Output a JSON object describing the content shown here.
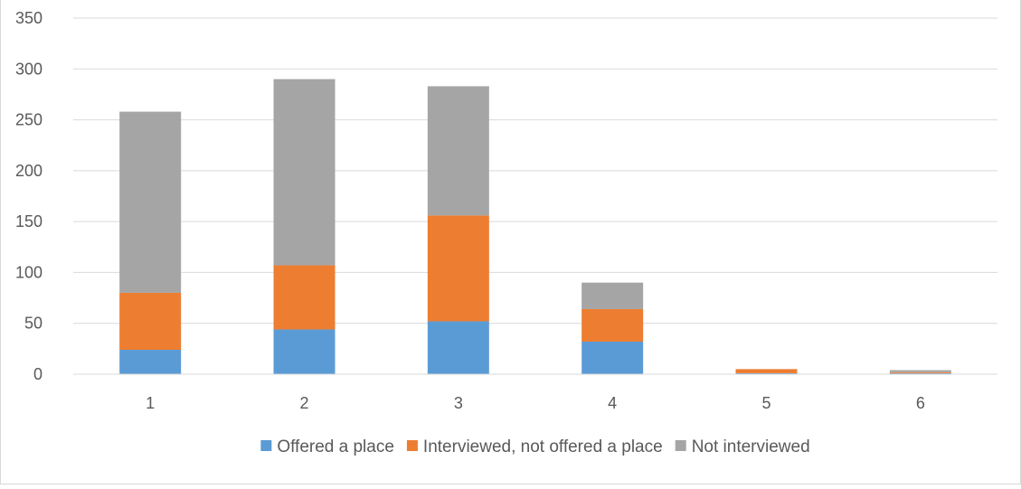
{
  "chart_data": {
    "type": "bar",
    "stacked": true,
    "title": "",
    "xlabel": "",
    "ylabel": "",
    "categories": [
      "1",
      "2",
      "3",
      "4",
      "5",
      "6"
    ],
    "ylim": [
      0,
      350
    ],
    "yticks": [
      0,
      50,
      100,
      150,
      200,
      250,
      300,
      350
    ],
    "grid": true,
    "legend_position": "bottom",
    "series": [
      {
        "name": "Offered a place",
        "color": "#5B9BD5",
        "values": [
          24,
          44,
          52,
          32,
          1,
          1
        ]
      },
      {
        "name": "Interviewed, not offered a place",
        "color": "#ED7D31",
        "values": [
          56,
          63,
          104,
          32,
          4,
          1
        ]
      },
      {
        "name": "Not interviewed",
        "color": "#A5A5A5",
        "values": [
          178,
          183,
          127,
          26,
          0,
          2
        ]
      }
    ]
  }
}
